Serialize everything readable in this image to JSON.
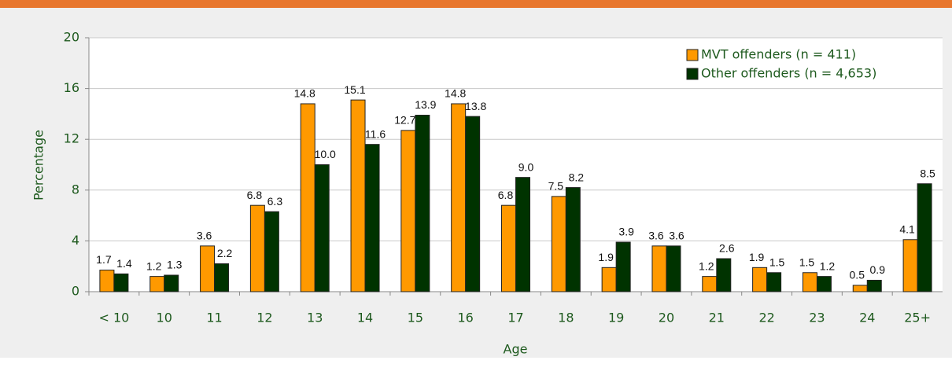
{
  "chart_data": {
    "type": "bar",
    "categories": [
      "< 10",
      "10",
      "11",
      "12",
      "13",
      "14",
      "15",
      "16",
      "17",
      "18",
      "19",
      "20",
      "21",
      "22",
      "23",
      "24",
      "25+"
    ],
    "series": [
      {
        "name": "MVT offenders (n = 411)",
        "color": "#ff9900",
        "values": [
          1.7,
          1.2,
          3.6,
          6.8,
          14.8,
          15.1,
          12.7,
          14.8,
          6.8,
          7.5,
          1.9,
          3.6,
          1.2,
          1.9,
          1.5,
          0.5,
          4.1
        ],
        "value_labels": [
          "1.7",
          "1.2",
          "3.6",
          "6.8",
          "14.8",
          "15.1",
          "12.7",
          "14.8",
          "6.8",
          "7.5",
          "1.9",
          "3.6",
          "1.2",
          "1.9",
          "1.5",
          "0.5",
          "4.1"
        ]
      },
      {
        "name": "Other offenders (n = 4,653)",
        "color": "#003300",
        "values": [
          1.4,
          1.3,
          2.2,
          6.3,
          10.0,
          11.6,
          13.9,
          13.8,
          9.0,
          8.2,
          3.9,
          3.6,
          2.6,
          1.5,
          1.2,
          0.9,
          8.5
        ],
        "value_labels": [
          "1.4",
          "1.3",
          "2.2",
          "6.3",
          "10.0",
          "11.6",
          "13.9",
          "13.8",
          "9.0",
          "8.2",
          "3.9",
          "3.6",
          "2.6",
          "1.5",
          "1.2",
          "0.9",
          "8.5"
        ]
      }
    ],
    "xlabel": "Age",
    "ylabel": "Percentage",
    "ylim": [
      0,
      20
    ],
    "yticks": [
      0,
      4,
      8,
      12,
      16,
      20
    ],
    "grid": true,
    "legend": "top-right"
  }
}
